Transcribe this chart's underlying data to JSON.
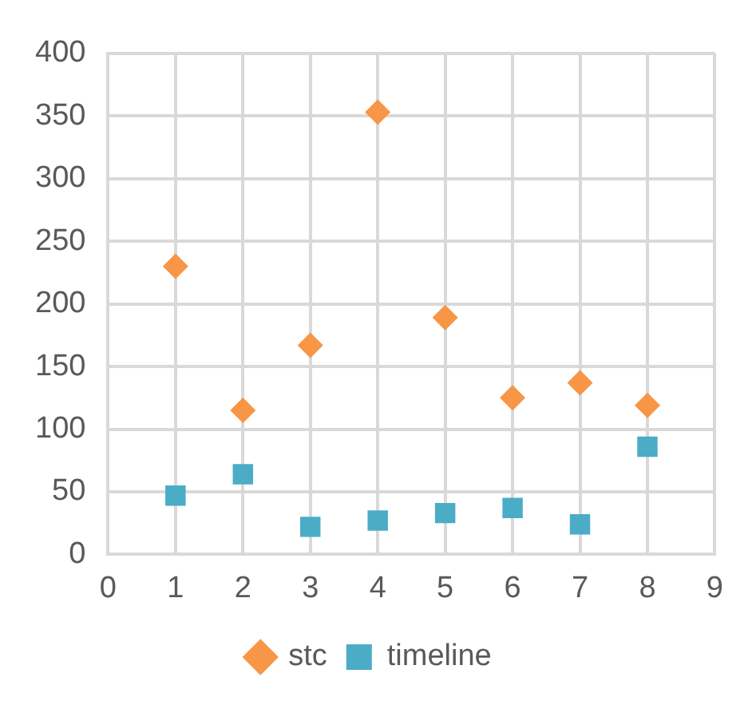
{
  "chart_data": {
    "type": "scatter",
    "xlim": [
      0,
      9
    ],
    "xticks": [
      0,
      1,
      2,
      3,
      4,
      5,
      6,
      7,
      8,
      9
    ],
    "ylim": [
      0,
      400
    ],
    "yticks": [
      0,
      50,
      100,
      150,
      200,
      250,
      300,
      350,
      400
    ],
    "grid": true,
    "legend": "bottom",
    "series": [
      {
        "name": "stc",
        "color": "#f79646",
        "marker": "diamond",
        "x": [
          1,
          2,
          3,
          4,
          5,
          6,
          7,
          8
        ],
        "values": [
          230,
          115,
          167,
          353,
          189,
          125,
          137,
          119
        ]
      },
      {
        "name": "timeline",
        "color": "#4bacc6",
        "marker": "square",
        "x": [
          1,
          2,
          3,
          4,
          5,
          6,
          7,
          8
        ],
        "values": [
          47,
          64,
          22,
          27,
          33,
          37,
          24,
          86
        ]
      }
    ]
  }
}
